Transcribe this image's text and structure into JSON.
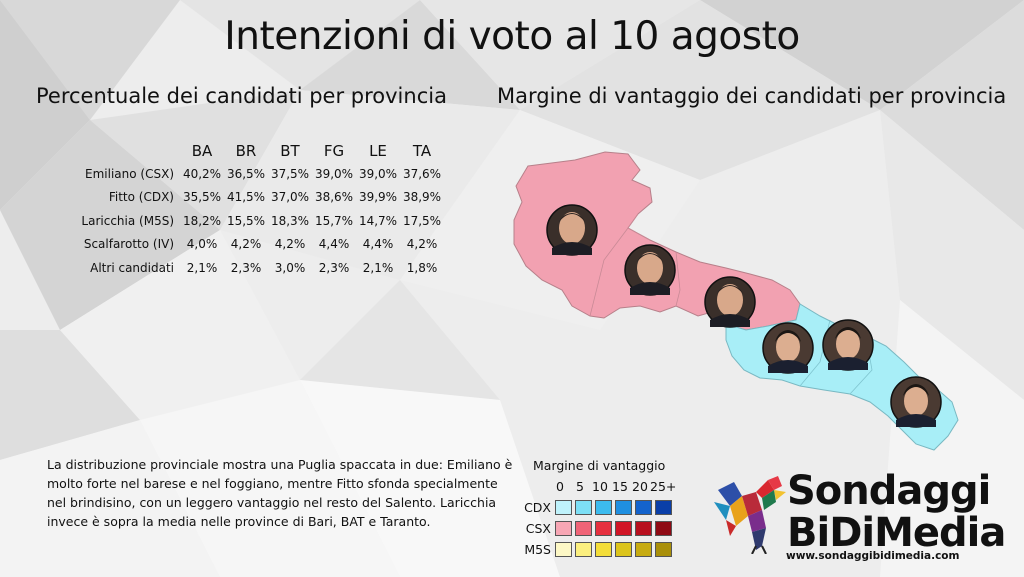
{
  "title": "Intenzioni di voto al 10 agosto",
  "left_subtitle": "Percentuale dei candidati per provincia",
  "right_subtitle": "Margine di vantaggio dei candidati per provincia",
  "table": {
    "columns": [
      "BA",
      "BR",
      "BT",
      "FG",
      "LE",
      "TA"
    ],
    "rows": [
      {
        "label": "Emiliano (CSX)",
        "values": [
          "40,2%",
          "36,5%",
          "37,5%",
          "39,0%",
          "39,0%",
          "37,6%"
        ]
      },
      {
        "label": "Fitto (CDX)",
        "values": [
          "35,5%",
          "41,5%",
          "37,0%",
          "38,6%",
          "39,9%",
          "38,9%"
        ]
      },
      {
        "label": "Laricchia (M5S)",
        "values": [
          "18,2%",
          "15,5%",
          "18,3%",
          "15,7%",
          "14,7%",
          "17,5%"
        ]
      },
      {
        "label": "Scalfarotto (IV)",
        "values": [
          "4,0%",
          "4,2%",
          "4,2%",
          "4,4%",
          "4,4%",
          "4,2%"
        ]
      },
      {
        "label": "Altri candidati",
        "values": [
          "2,1%",
          "2,3%",
          "3,0%",
          "2,3%",
          "2,1%",
          "1,8%"
        ]
      }
    ]
  },
  "description": "La distribuzione provinciale mostra una Puglia spaccata in due: Emiliano è molto forte nel barese e nel foggiano, mentre Fitto sfonda specialmente nel brindisino, con un leggero vantaggio nel resto del Salento. Laricchia invece è sopra la media nelle province di Bari, BAT e Taranto.",
  "legend": {
    "title": "Margine di vantaggio",
    "scale": [
      "0",
      "5",
      "10",
      "15",
      "20",
      "25+"
    ],
    "rows": [
      {
        "label": "CDX",
        "colors": [
          "#bff2fb",
          "#7ddff5",
          "#3cbbee",
          "#1f8fe0",
          "#1463cc",
          "#0a3fa8"
        ]
      },
      {
        "label": "CSX",
        "colors": [
          "#f7a6b4",
          "#f06477",
          "#e6303f",
          "#d11526",
          "#b80f1e",
          "#8f0a14"
        ]
      },
      {
        "label": "M5S",
        "colors": [
          "#fdf8c6",
          "#fbef7f",
          "#f3dd39",
          "#dcc41c",
          "#c7ab12",
          "#a98f0a"
        ]
      }
    ]
  },
  "map": {
    "csx_color": "#f2a1b1",
    "cdx_color": "#a8eef7",
    "candidate_icon": "candidate-portrait-icon"
  },
  "logo": {
    "line1": "Sondaggi",
    "line2": "BiDiMedia",
    "url": "www.sondaggibidimedia.com"
  }
}
